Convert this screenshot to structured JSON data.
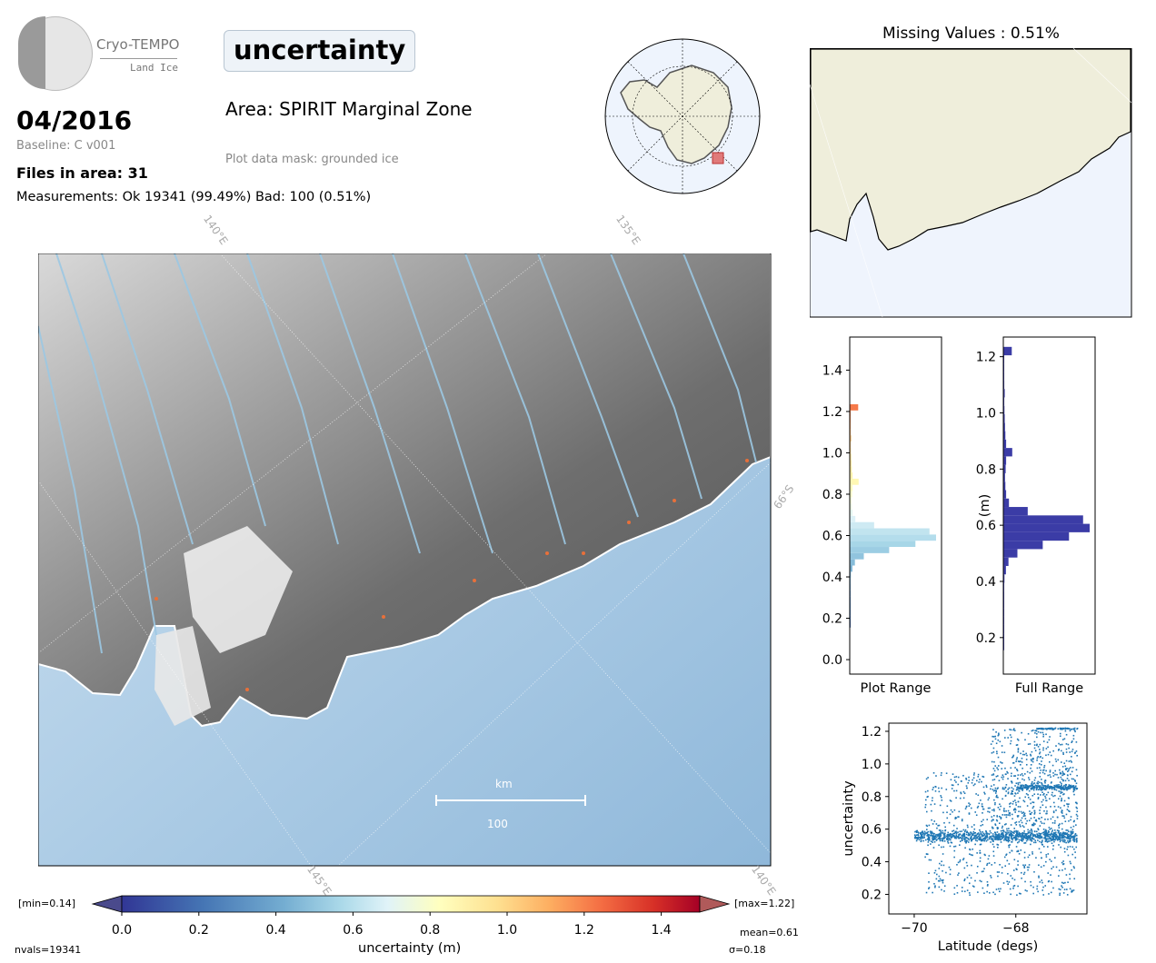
{
  "logo": {
    "name": "Cryo-TEMPO",
    "subtitle": "Land Ice"
  },
  "header": {
    "parameter": "uncertainty",
    "date": "04/2016",
    "baseline": "Baseline: C v001",
    "files": "Files in area: 31",
    "measurements": "Measurements: Ok 19341 (99.49%) Bad: 100 (0.51%)",
    "area": "Area: SPIRIT Marginal Zone",
    "mask": "Plot data mask: grounded ice",
    "missing": "Missing Values : 0.51%"
  },
  "map": {
    "graticule_labels": [
      "140°E",
      "135°E",
      "66°S",
      "145°E",
      "140°E"
    ],
    "scalebar_unit": "km",
    "scalebar_value": "100"
  },
  "colorbar": {
    "label": "uncertainty (m)",
    "ticks": [
      "0.0",
      "0.2",
      "0.4",
      "0.6",
      "0.8",
      "1.0",
      "1.2",
      "1.4"
    ],
    "min_label": "[min=0.14]",
    "max_label": "[max=1.22]",
    "nvals": "nvals=19341",
    "mean": "mean=0.61",
    "sigma": "σ=0.18"
  },
  "chart_data": [
    {
      "type": "bar",
      "orientation": "horizontal",
      "xlabel": "Plot Range",
      "ylabel": "",
      "ylim": [
        -0.07,
        1.56
      ],
      "yticks": [
        "0.0",
        "0.2",
        "0.4",
        "0.6",
        "0.8",
        "1.0",
        "1.2",
        "1.4"
      ],
      "bins": [
        0.17,
        0.2,
        0.23,
        0.26,
        0.29,
        0.32,
        0.35,
        0.38,
        0.41,
        0.44,
        0.47,
        0.5,
        0.53,
        0.56,
        0.59,
        0.62,
        0.65,
        0.68,
        0.71,
        0.74,
        0.77,
        0.8,
        0.83,
        0.86,
        0.89,
        0.92,
        0.95,
        0.98,
        1.01,
        1.04,
        1.07,
        1.1,
        1.13,
        1.16,
        1.19,
        1.22
      ],
      "counts": [
        1,
        2,
        3,
        4,
        5,
        6,
        7,
        8,
        12,
        28,
        55,
        150,
        420,
        700,
        920,
        850,
        260,
        60,
        30,
        22,
        18,
        25,
        30,
        95,
        30,
        22,
        18,
        15,
        12,
        10,
        15,
        10,
        8,
        6,
        4,
        90
      ]
    },
    {
      "type": "bar",
      "orientation": "horizontal",
      "xlabel": "Full Range",
      "ylabel": "(m)",
      "ylim": [
        0.07,
        1.27
      ],
      "yticks": [
        "0.2",
        "0.4",
        "0.6",
        "0.8",
        "1.0",
        "1.2"
      ],
      "color": "#3b3ca6",
      "bins": [
        0.17,
        0.2,
        0.23,
        0.26,
        0.29,
        0.32,
        0.35,
        0.38,
        0.41,
        0.44,
        0.47,
        0.5,
        0.53,
        0.56,
        0.59,
        0.62,
        0.65,
        0.68,
        0.71,
        0.74,
        0.77,
        0.8,
        0.83,
        0.86,
        0.89,
        0.92,
        0.95,
        0.98,
        1.01,
        1.04,
        1.07,
        1.1,
        1.13,
        1.16,
        1.19,
        1.22
      ],
      "counts": [
        1,
        2,
        3,
        4,
        5,
        6,
        7,
        8,
        12,
        28,
        55,
        150,
        420,
        700,
        920,
        850,
        260,
        60,
        30,
        22,
        18,
        25,
        30,
        95,
        30,
        22,
        18,
        15,
        12,
        10,
        15,
        10,
        8,
        6,
        4,
        90
      ]
    },
    {
      "type": "scatter",
      "xlabel": "Latitude (degs)",
      "ylabel": "uncertainty",
      "xlim": [
        -70.5,
        -66.6
      ],
      "ylim": [
        0.08,
        1.25
      ],
      "xticks": [
        "−70",
        "−68"
      ],
      "yticks": [
        "0.2",
        "0.4",
        "0.6",
        "0.8",
        "1.0",
        "1.2"
      ],
      "color": "#1f77b4",
      "clusters": [
        {
          "x_range": [
            -70.0,
            -66.8
          ],
          "y_center": 0.56,
          "y_spread": 0.04
        },
        {
          "x_range": [
            -69.8,
            -66.8
          ],
          "y_range": [
            0.2,
            0.95
          ]
        },
        {
          "x_range": [
            -68.5,
            -66.8
          ],
          "y_range": [
            0.6,
            1.22
          ]
        },
        {
          "x_range": [
            -68.0,
            -66.8
          ],
          "y_center": 0.86,
          "y_spread": 0.02
        },
        {
          "x_range": [
            -67.6,
            -66.8
          ],
          "y_center": 1.22,
          "y_spread": 0.005
        }
      ]
    }
  ]
}
